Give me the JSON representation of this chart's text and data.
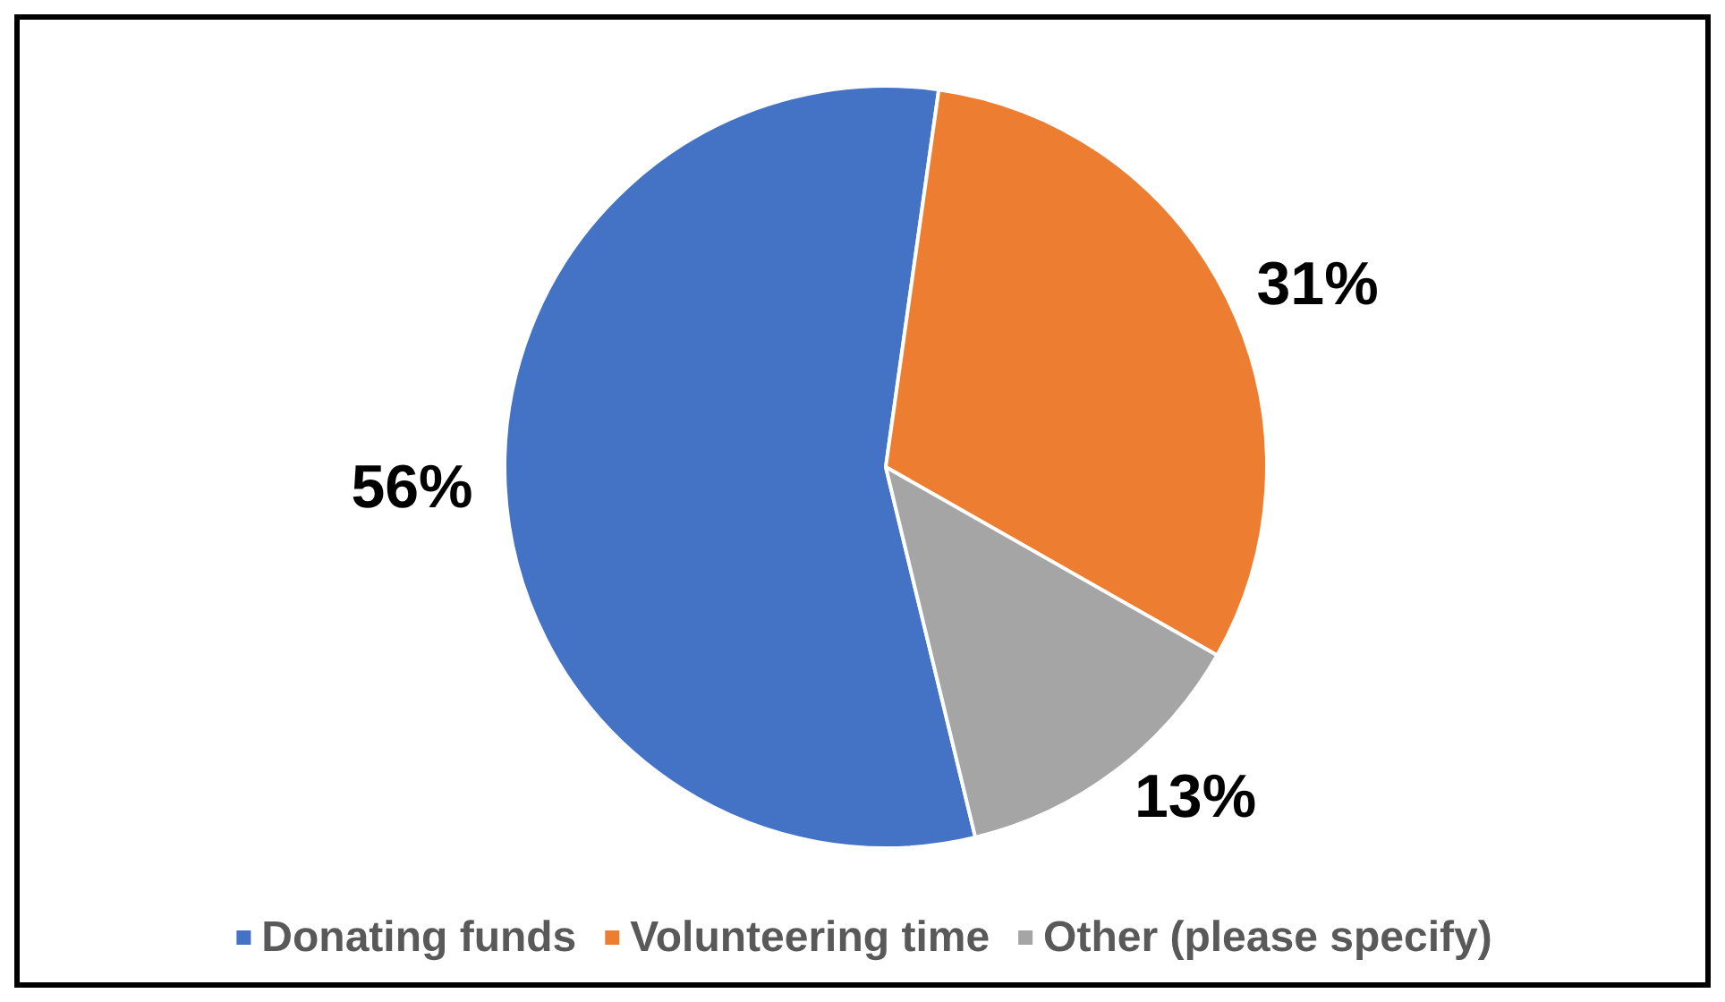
{
  "chart_data": {
    "type": "pie",
    "categories": [
      "Donating funds",
      "Volunteering time",
      "Other (please specify)"
    ],
    "values": [
      56,
      31,
      13
    ],
    "colors": [
      "#4472c4",
      "#ed7d31",
      "#a5a5a5"
    ],
    "value_labels": [
      "56%",
      "31%",
      "13%"
    ],
    "legend": "bottom"
  }
}
